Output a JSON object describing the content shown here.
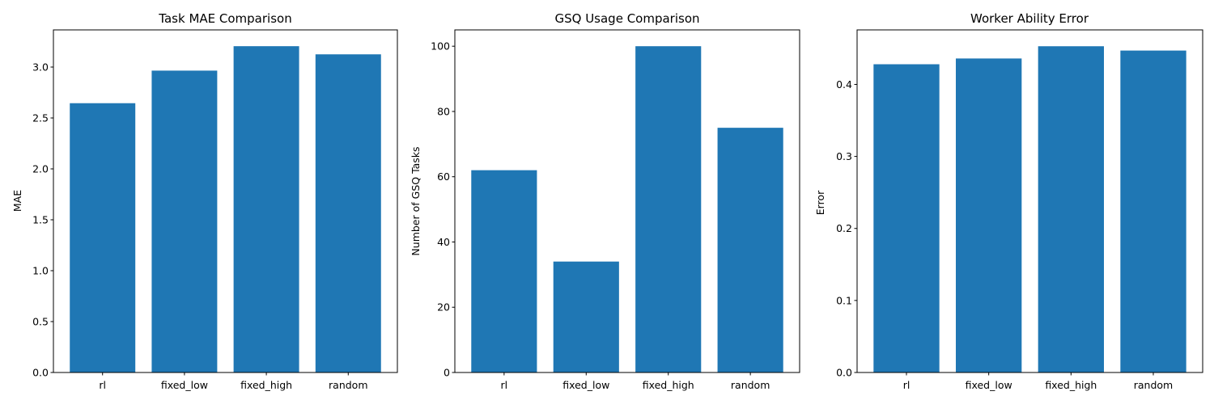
{
  "colors": {
    "bar": "#1f77b4",
    "axis": "#000000",
    "background": "#ffffff"
  },
  "chart_data": [
    {
      "type": "bar",
      "title": "Task MAE Comparison",
      "xlabel": "",
      "ylabel": "MAE",
      "categories": [
        "rl",
        "fixed_low",
        "fixed_high",
        "random"
      ],
      "values": [
        2.645,
        2.965,
        3.205,
        3.125
      ],
      "ylim": [
        0,
        3.365
      ],
      "yticks": [
        0.0,
        0.5,
        1.0,
        1.5,
        2.0,
        2.5,
        3.0
      ],
      "ytick_labels": [
        "0.0",
        "0.5",
        "1.0",
        "1.5",
        "2.0",
        "2.5",
        "3.0"
      ],
      "grid": false,
      "legend": "none"
    },
    {
      "type": "bar",
      "title": "GSQ Usage Comparison",
      "xlabel": "",
      "ylabel": "Number of GSQ Tasks",
      "categories": [
        "rl",
        "fixed_low",
        "fixed_high",
        "random"
      ],
      "values": [
        62,
        34,
        100,
        75
      ],
      "ylim": [
        0,
        105
      ],
      "yticks": [
        0,
        20,
        40,
        60,
        80,
        100
      ],
      "ytick_labels": [
        "0",
        "20",
        "40",
        "60",
        "80",
        "100"
      ],
      "grid": false,
      "legend": "none"
    },
    {
      "type": "bar",
      "title": "Worker Ability Error",
      "xlabel": "",
      "ylabel": "Error",
      "categories": [
        "rl",
        "fixed_low",
        "fixed_high",
        "random"
      ],
      "values": [
        0.428,
        0.436,
        0.453,
        0.447
      ],
      "ylim": [
        0,
        0.4757
      ],
      "yticks": [
        0.0,
        0.1,
        0.2,
        0.3,
        0.4
      ],
      "ytick_labels": [
        "0.0",
        "0.1",
        "0.2",
        "0.3",
        "0.4"
      ],
      "grid": false,
      "legend": "none"
    }
  ]
}
